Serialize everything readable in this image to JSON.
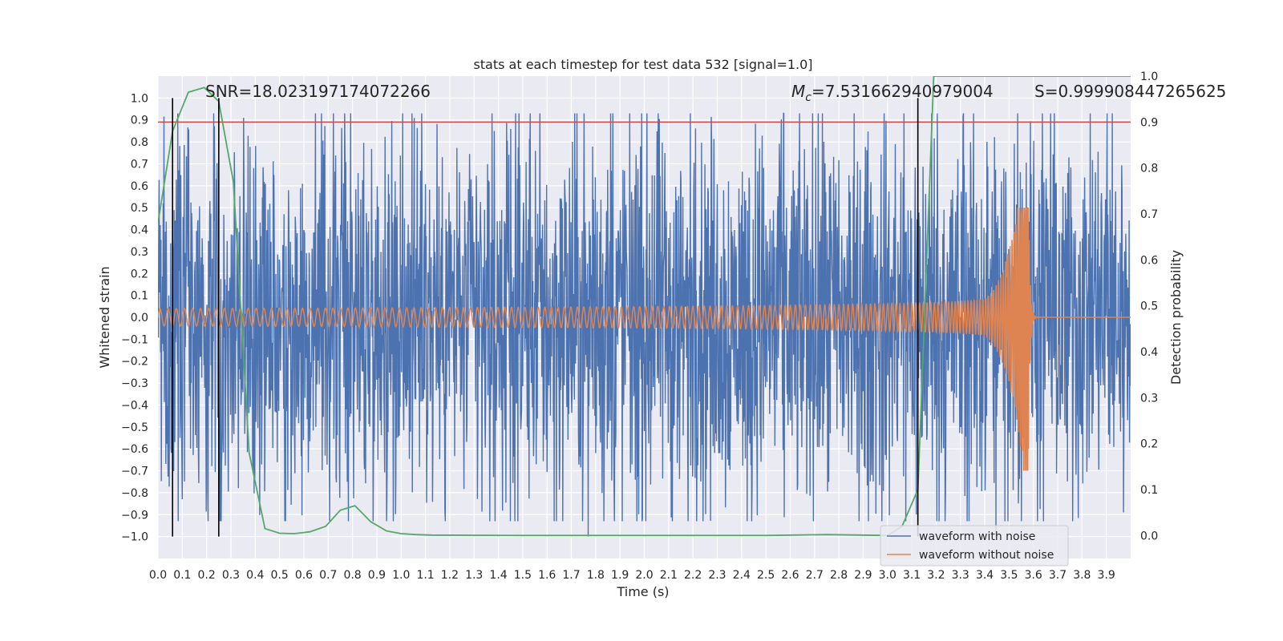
{
  "chart_data": {
    "type": "line",
    "title": "stats at each timestep for test data 532 [signal=1.0]",
    "xlabel": "Time (s)",
    "ylabel": "Whitened strain",
    "y2label": "Detection probability",
    "xlim": [
      0.0,
      4.0
    ],
    "ylim": [
      -1.1,
      1.1
    ],
    "y2lim": [
      -0.05,
      1.0
    ],
    "xticks": [
      0.0,
      0.1,
      0.2,
      0.3,
      0.4,
      0.5,
      0.6,
      0.7,
      0.8,
      0.9,
      1.0,
      1.1,
      1.2,
      1.3,
      1.4,
      1.5,
      1.6,
      1.7,
      1.8,
      1.9,
      2.0,
      2.1,
      2.2,
      2.3,
      2.4,
      2.5,
      2.6,
      2.7,
      2.8,
      2.9,
      3.0,
      3.1,
      3.2,
      3.3,
      3.4,
      3.5,
      3.6,
      3.7,
      3.8,
      3.9
    ],
    "xticklabels": [
      "0.0",
      "0.1",
      "0.2",
      "0.3",
      "0.4",
      "0.5",
      "0.6",
      "0.7",
      "0.8",
      "0.9",
      "1.0",
      "1.1",
      "1.2",
      "1.3",
      "1.4",
      "1.5",
      "1.6",
      "1.7",
      "1.8",
      "1.9",
      "2.0",
      "2.1",
      "2.2",
      "2.3",
      "2.4",
      "2.5",
      "2.6",
      "2.7",
      "2.8",
      "2.9",
      "3.0",
      "3.1",
      "3.2",
      "3.3",
      "3.4",
      "3.5",
      "3.6",
      "3.7",
      "3.8",
      "3.9"
    ],
    "yticks": [
      1.0,
      0.9,
      0.8,
      0.7,
      0.6,
      0.5,
      0.4,
      0.3,
      0.2,
      0.1,
      0.0,
      -0.1,
      -0.2,
      -0.3,
      -0.4,
      -0.5,
      -0.6,
      -0.7,
      -0.8,
      -0.9,
      -1.0
    ],
    "yticklabels": [
      "1.0",
      "0.9",
      "0.8",
      "0.7",
      "0.6",
      "0.5",
      "0.4",
      "0.3",
      "0.2",
      "0.1",
      "0.0",
      "−0.1",
      "−0.2",
      "−0.3",
      "−0.4",
      "−0.5",
      "−0.6",
      "−0.7",
      "−0.8",
      "−0.9",
      "−1.0"
    ],
    "y2ticks": [
      1.0,
      0.9,
      0.8,
      0.7,
      0.6,
      0.5,
      0.4,
      0.3,
      0.2,
      0.1,
      0.0
    ],
    "y2ticklabels": [
      "1.0",
      "0.9",
      "0.8",
      "0.7",
      "0.6",
      "0.5",
      "0.4",
      "0.3",
      "0.2",
      "0.1",
      "0.0"
    ],
    "series": [
      {
        "name": "waveform with noise",
        "color": "#4c72b0",
        "kind": "noise",
        "amplitude_typical": 0.45,
        "peak_max": 1.0,
        "peak_min": -1.0
      },
      {
        "name": "waveform without noise",
        "color": "#dd8452",
        "kind": "chirp",
        "start_amplitude": 0.04,
        "merger_time": 3.58,
        "merger_peak_max": 0.5,
        "merger_peak_min": -0.7
      }
    ],
    "detection_probability": {
      "color": "#55a868",
      "axis": "y2",
      "x": [
        0.0,
        0.06,
        0.125,
        0.19,
        0.25,
        0.31,
        0.375,
        0.44,
        0.5,
        0.56,
        0.625,
        0.69,
        0.75,
        0.81,
        0.875,
        0.94,
        1.0,
        1.06,
        1.125,
        1.5,
        2.0,
        2.5,
        2.75,
        3.0,
        3.06,
        3.125,
        3.19,
        3.25,
        3.5,
        3.75,
        4.0
      ],
      "y": [
        0.68,
        0.88,
        0.965,
        0.975,
        0.945,
        0.77,
        0.18,
        0.015,
        0.005,
        0.004,
        0.008,
        0.02,
        0.055,
        0.065,
        0.03,
        0.01,
        0.004,
        0.002,
        0.001,
        0.0,
        0.0,
        0.0,
        0.002,
        0.0,
        0.02,
        0.1,
        1.0,
        1.0,
        1.0,
        1.0,
        1.0
      ]
    },
    "threshold": {
      "value": 0.9,
      "axis": "y2",
      "color": "#c44e52"
    },
    "event_markers": {
      "x": [
        0.06,
        0.25,
        3.125
      ],
      "color": "#000000"
    },
    "annotations": {
      "snr": "SNR=18.023197174072266",
      "mc_prefix": "M",
      "mc_sub": "c",
      "mc_value": "=7.531662940979004",
      "s": "S=0.999908447265625"
    },
    "legend": {
      "position": "lower-right",
      "entries": [
        "waveform with noise",
        "waveform without noise"
      ]
    },
    "grid": true,
    "background": "#eaeaf2"
  }
}
